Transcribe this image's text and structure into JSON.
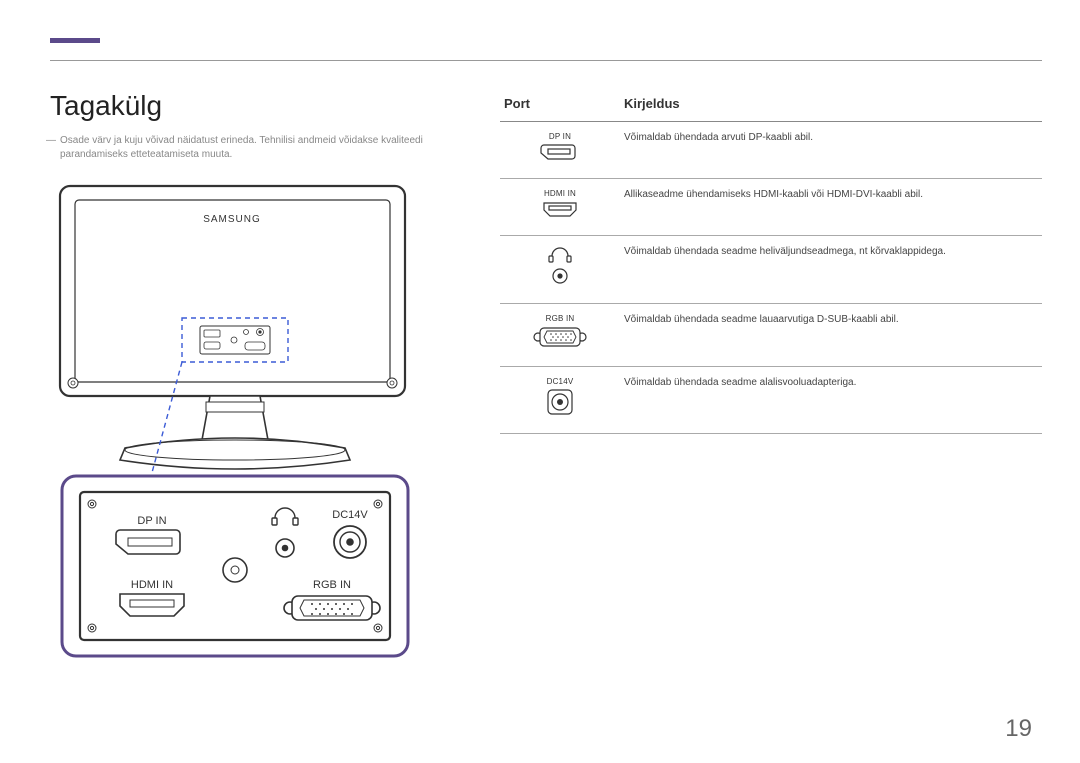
{
  "accent_color": "#5b4a8a",
  "rule_color": "#999999",
  "text_color": "#333333",
  "muted_text_color": "#888888",
  "background_color": "#ffffff",
  "title": "Tagakülg",
  "note": "Osade värv ja kuju võivad näidatust erineda. Tehnilisi andmeid võidakse kvaliteedi parandamiseks etteteatamiseta muuta.",
  "monitor_brand": "SAMSUNG",
  "detail_labels": {
    "dp_in": "DP IN",
    "hdmi_in": "HDMI IN",
    "dc14v": "DC14V",
    "rgb_in": "RGB IN"
  },
  "callout_box_stroke": "#5b4a8a",
  "callout_line_color": "#3b5bd6",
  "table": {
    "headers": {
      "port": "Port",
      "desc": "Kirjeldus"
    },
    "rows": [
      {
        "label": "DP IN",
        "icon": "dp",
        "desc": "Võimaldab ühendada arvuti DP-kaabli abil."
      },
      {
        "label": "HDMI IN",
        "icon": "hdmi",
        "desc": "Allikaseadme ühendamiseks HDMI-kaabli või HDMI-DVI-kaabli abil."
      },
      {
        "label": "",
        "icon": "hp",
        "desc": "Võimaldab ühendada seadme heliväljundseadmega, nt kõrvaklappidega."
      },
      {
        "label": "RGB IN",
        "icon": "vga",
        "desc": "Võimaldab ühendada seadme lauaarvutiga D-SUB-kaabli abil."
      },
      {
        "label": "DC14V",
        "icon": "dc",
        "desc": "Võimaldab ühendada seadme alalisvooluadapteriga."
      }
    ]
  },
  "page_number": "19"
}
